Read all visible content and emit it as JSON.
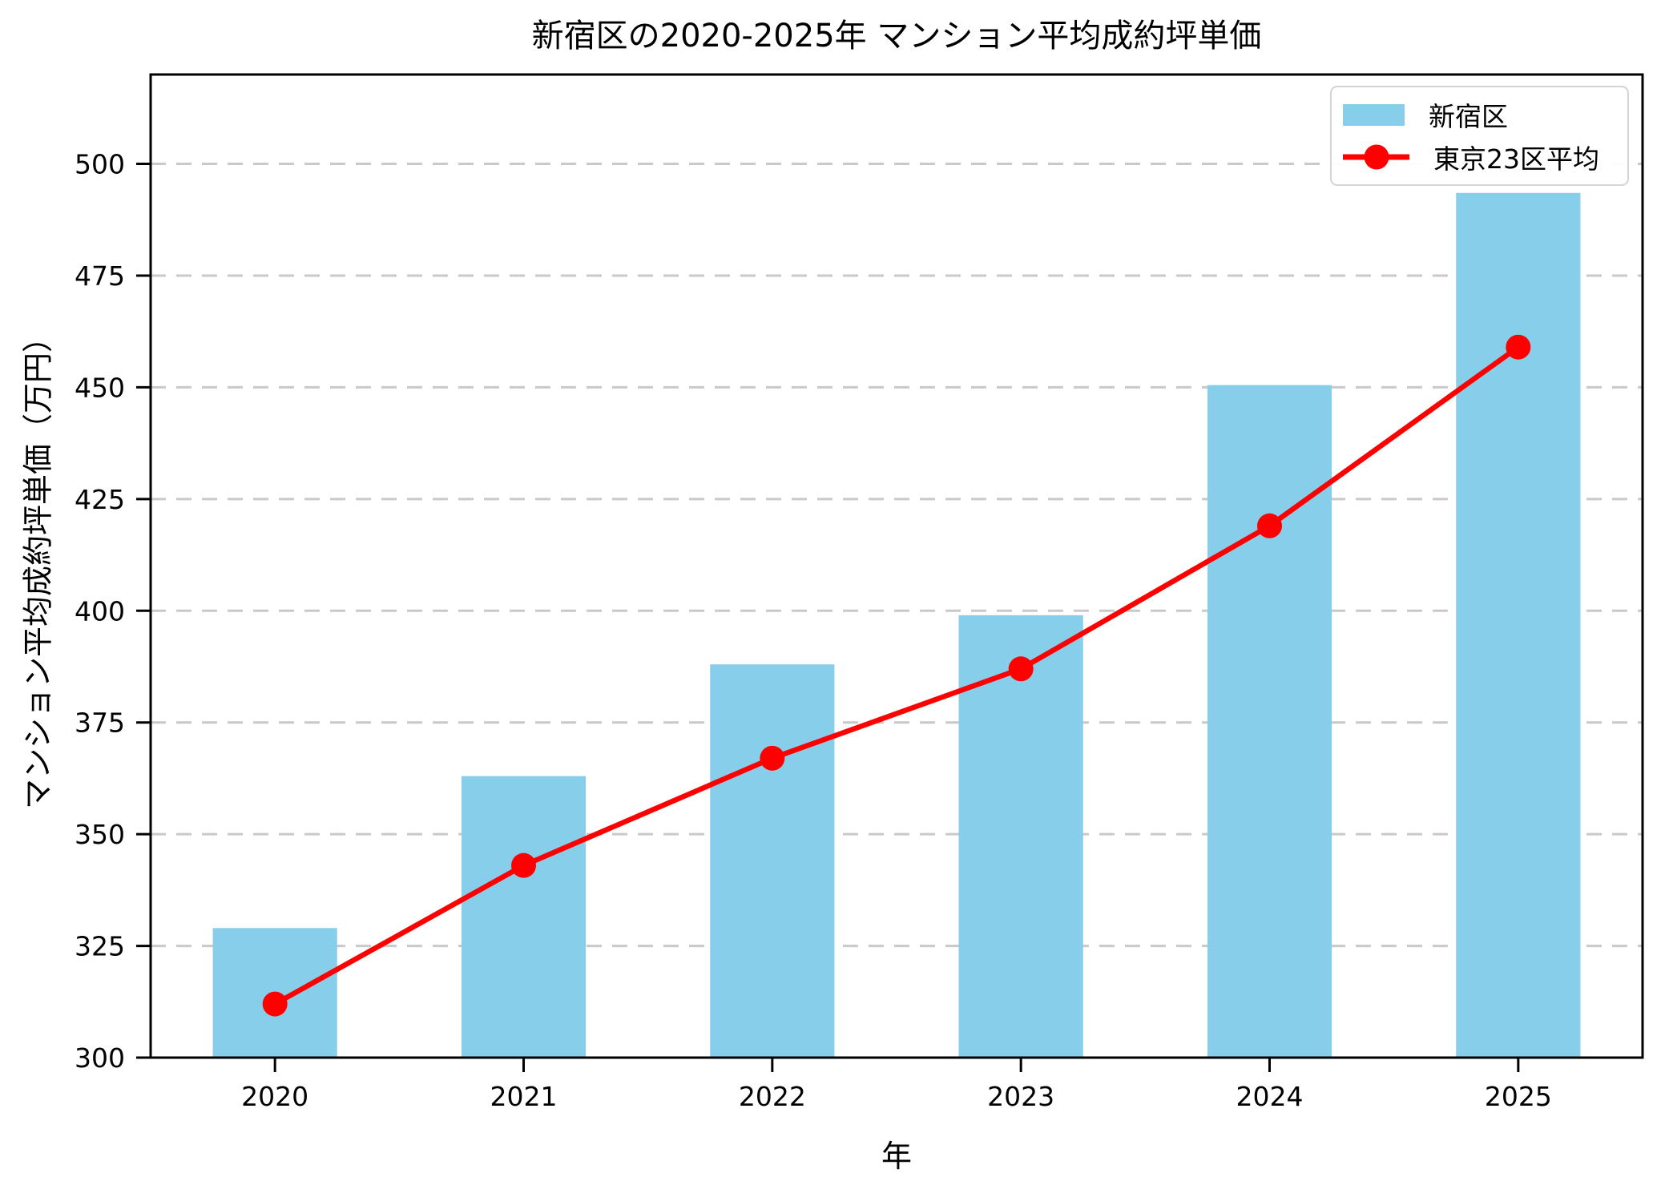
{
  "chart_data": {
    "type": "bar+line",
    "title": "新宿区の2020-2025年 マンション平均成約坪単価",
    "xlabel": "年",
    "ylabel": "マンション平均成約坪単価（万円）",
    "categories": [
      "2020",
      "2021",
      "2022",
      "2023",
      "2024",
      "2025"
    ],
    "series": [
      {
        "name": "新宿区",
        "type": "bar",
        "color": "#87CEEB",
        "values": [
          329,
          363,
          388,
          399,
          450.5,
          493.5
        ]
      },
      {
        "name": "東京23区平均",
        "type": "line",
        "marker": "circle",
        "color": "#FF0000",
        "values": [
          312,
          343,
          367,
          387,
          419,
          459
        ]
      }
    ],
    "ylim": [
      300,
      520
    ],
    "yticks": [
      300,
      325,
      350,
      375,
      400,
      425,
      450,
      475,
      500
    ],
    "grid": "horizontal-dashed",
    "grid_color": "#c9c9c9",
    "legend_position": "upper right",
    "axis_color": "#000000",
    "background_color": "#ffffff"
  }
}
